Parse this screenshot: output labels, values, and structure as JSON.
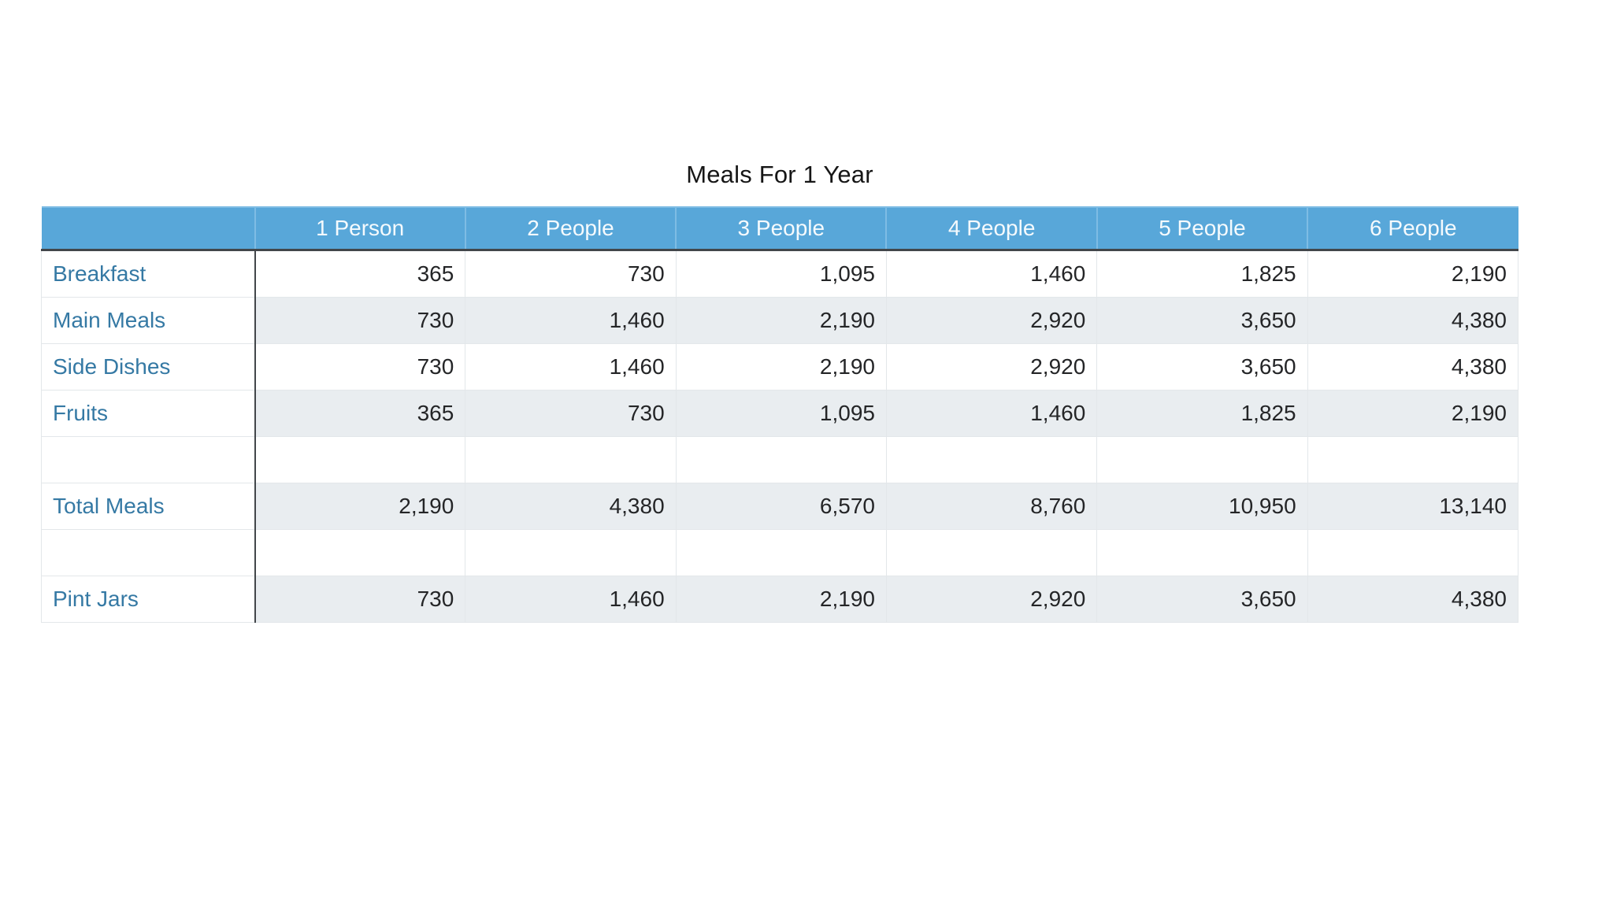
{
  "title": "Meals For 1 Year",
  "table": {
    "corner_header": "",
    "columns": [
      "1 Person",
      "2 People",
      "3 People",
      "4 People",
      "5 People",
      "6 People"
    ],
    "rows": [
      {
        "label": "Breakfast",
        "values": [
          "365",
          "730",
          "1,095",
          "1,460",
          "1,825",
          "2,190"
        ]
      },
      {
        "label": "Main Meals",
        "values": [
          "730",
          "1,460",
          "2,190",
          "2,920",
          "3,650",
          "4,380"
        ]
      },
      {
        "label": "Side Dishes",
        "values": [
          "730",
          "1,460",
          "2,190",
          "2,920",
          "3,650",
          "4,380"
        ]
      },
      {
        "label": "Fruits",
        "values": [
          "365",
          "730",
          "1,095",
          "1,460",
          "1,825",
          "2,190"
        ]
      },
      {
        "label": "",
        "values": [
          "",
          "",
          "",
          "",
          "",
          ""
        ]
      },
      {
        "label": "Total Meals",
        "values": [
          "2,190",
          "4,380",
          "6,570",
          "8,760",
          "10,950",
          "13,140"
        ]
      },
      {
        "label": "",
        "values": [
          "",
          "",
          "",
          "",
          "",
          ""
        ]
      },
      {
        "label": "Pint Jars",
        "values": [
          "730",
          "1,460",
          "2,190",
          "2,920",
          "3,650",
          "4,380"
        ]
      }
    ]
  },
  "chart_data": {
    "type": "table",
    "title": "Meals For 1 Year",
    "columns": [
      "1 Person",
      "2 People",
      "3 People",
      "4 People",
      "5 People",
      "6 People"
    ],
    "rows": [
      {
        "label": "Breakfast",
        "values": [
          365,
          730,
          1095,
          1460,
          1825,
          2190
        ]
      },
      {
        "label": "Main Meals",
        "values": [
          730,
          1460,
          2190,
          2920,
          3650,
          4380
        ]
      },
      {
        "label": "Side Dishes",
        "values": [
          730,
          1460,
          2190,
          2920,
          3650,
          4380
        ]
      },
      {
        "label": "Fruits",
        "values": [
          365,
          730,
          1095,
          1460,
          1825,
          2190
        ]
      },
      {
        "label": "Total Meals",
        "values": [
          2190,
          4380,
          6570,
          8760,
          10950,
          13140
        ]
      },
      {
        "label": "Pint Jars",
        "values": [
          730,
          1460,
          2190,
          2920,
          3650,
          4380
        ]
      }
    ],
    "layout": {
      "striped_rows": true,
      "spacer_rows_after": [
        "Fruits",
        "Total Meals"
      ]
    }
  },
  "colors": {
    "header_bg": "#58A7D9",
    "header_sep": "#7EBCE4",
    "header_text": "#F5FAFD",
    "dark_border": "#42464A",
    "light_border": "#E3E7EA",
    "label_text": "#3579A4",
    "value_text": "#242527",
    "stripe_bg": "#E9EDF0",
    "title_text": "#161616"
  }
}
